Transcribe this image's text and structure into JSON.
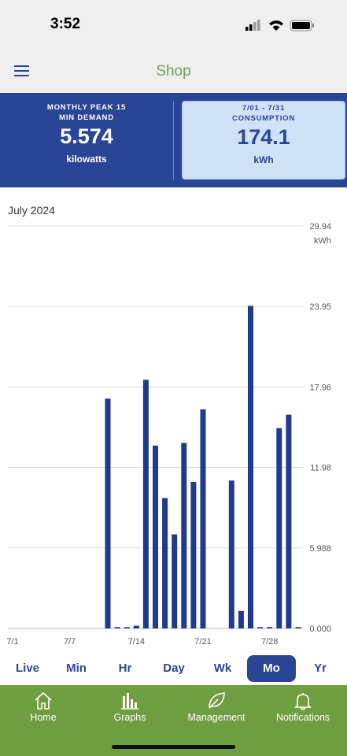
{
  "status_bar": {
    "time": "3:52"
  },
  "header": {
    "title": "Shop"
  },
  "summary": [
    {
      "label_lines": [
        "MONTHLY PEAK 15",
        "MIN DEMAND"
      ],
      "value": "5.574",
      "unit": "kilowatts"
    },
    {
      "label_lines": [
        "7/01 - 7/31",
        "CONSUMPTION"
      ],
      "value": "174.1",
      "unit": "kWh"
    }
  ],
  "chart_data": {
    "type": "bar",
    "title": "July 2024",
    "y_unit": "kWh",
    "color": "#1f3a8f",
    "categories": [
      "7/1",
      null,
      null,
      null,
      null,
      null,
      "7/7",
      null,
      null,
      null,
      null,
      null,
      null,
      "7/14",
      null,
      null,
      null,
      null,
      null,
      null,
      "7/21",
      null,
      null,
      null,
      null,
      null,
      null,
      "7/28",
      null,
      null,
      null
    ],
    "values": [
      0,
      0,
      0,
      0,
      0,
      0,
      0,
      0,
      0,
      0,
      17.1,
      0.1,
      0.1,
      0.2,
      18.5,
      13.6,
      9.7,
      7.0,
      13.8,
      10.9,
      16.3,
      0,
      0,
      11.0,
      1.3,
      24.0,
      0.1,
      0.1,
      14.9,
      15.9,
      0.1
    ],
    "ylim": [
      0,
      29.94
    ],
    "yticks": [
      {
        "value": 0,
        "label": "0.000"
      },
      5.988,
      11.98,
      17.96,
      23.95,
      29.94
    ],
    "grid": true
  },
  "tabs": [
    "Live",
    "Min",
    "Hr",
    "Day",
    "Wk",
    "Mo",
    "Yr"
  ],
  "selected_tab": 5,
  "nav": [
    "Home",
    "Graphs",
    "Management",
    "Notifications"
  ]
}
